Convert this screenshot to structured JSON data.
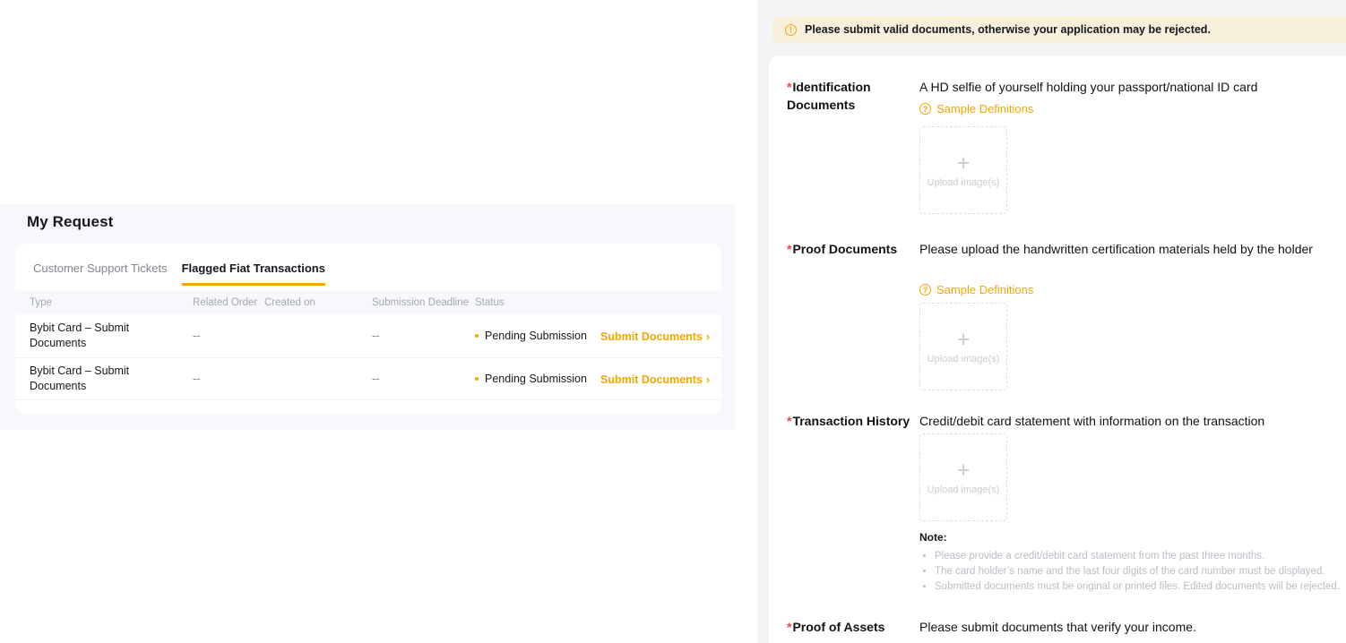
{
  "icons": {
    "info": "!",
    "question": "?",
    "plus": "+",
    "chevron": "›"
  },
  "colors": {
    "accent": "#f7a600",
    "required": "#ef454a",
    "banner_bg": "#f8f0da"
  },
  "left": {
    "title": "My Request",
    "tabs": [
      {
        "label": "Customer Support Tickets",
        "active": false
      },
      {
        "label": "Flagged Fiat Transactions",
        "active": true
      }
    ],
    "table": {
      "headers": [
        "Type",
        "Related Order",
        "Created on",
        "Submission Deadline",
        "Status"
      ],
      "rows": [
        {
          "type": "Bybit Card – Submit Documents",
          "related_order": "--",
          "created_on_redacted": true,
          "submission_deadline": "--",
          "status": "Pending Submission",
          "action": "Submit Documents"
        },
        {
          "type": "Bybit Card – Submit Documents",
          "related_order": "--",
          "created_on_redacted": true,
          "submission_deadline": "--",
          "status": "Pending Submission",
          "action": "Submit Documents"
        }
      ]
    }
  },
  "right": {
    "banner": "Please submit valid documents, otherwise your application may be rejected.",
    "required_marker": "*",
    "sample_link": "Sample Definitions",
    "upload_label": "Upload image(s)",
    "fields": [
      {
        "label": "Identification Documents",
        "description": "A HD selfie of yourself holding your passport/national ID card"
      },
      {
        "label": "Proof Documents",
        "description": "Please upload the handwritten certification materials held by the holder"
      },
      {
        "label": "Transaction History",
        "description": "Credit/debit card statement with information on the transaction"
      },
      {
        "label": "Proof of Assets",
        "description": "Please submit documents that verify your income."
      }
    ],
    "note": {
      "title": "Note:",
      "items": [
        "Please provide a credit/debit card statement from the past three months.",
        "The card holder’s name and the last four digits of the card number must be displayed.",
        "Submitted documents must be original or printed files. Edited documents will be rejected."
      ]
    }
  }
}
